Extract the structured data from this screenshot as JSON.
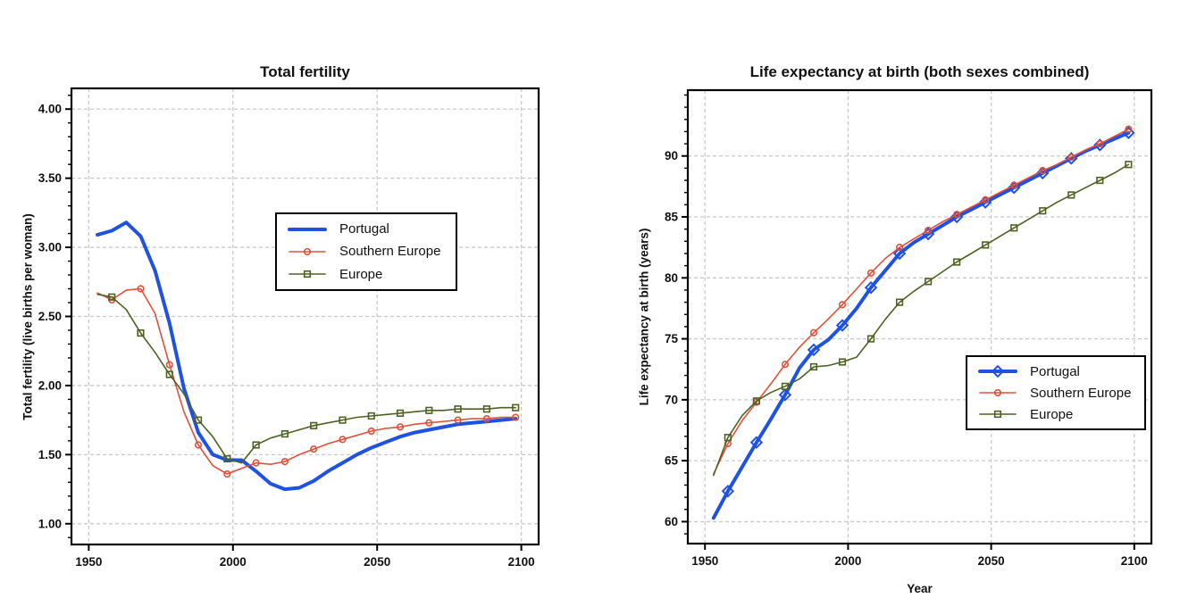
{
  "colors": {
    "portugal": "#1f51e3",
    "southern_europe": "#e0503a",
    "europe": "#4e6222",
    "grid": "#c9c9c9",
    "axis": "#000000",
    "text": "#111111",
    "background": "#ffffff"
  },
  "chart_data": [
    {
      "type": "line",
      "title": "Total fertility",
      "xlabel": "",
      "ylabel": "Total fertility (live births per woman)",
      "grid": true,
      "legend_position": "upper-middle",
      "xlim": [
        1944,
        2106
      ],
      "ylim": [
        0.85,
        4.15
      ],
      "xticks": [
        1950,
        2000,
        2050,
        2100
      ],
      "xtick_labels": [
        "1950",
        "2000",
        "2050",
        "2100"
      ],
      "yticks": [
        1.0,
        1.5,
        2.0,
        2.5,
        3.0,
        3.5,
        4.0
      ],
      "ytick_labels": [
        "1.00",
        "1.50",
        "2.00",
        "2.50",
        "3.00",
        "3.50",
        "4.00"
      ],
      "y_minor_step": 0.1,
      "x": [
        1953,
        1958,
        1963,
        1968,
        1973,
        1978,
        1983,
        1988,
        1993,
        1998,
        2003,
        2008,
        2013,
        2018,
        2023,
        2028,
        2033,
        2038,
        2043,
        2048,
        2053,
        2058,
        2063,
        2068,
        2073,
        2078,
        2083,
        2088,
        2093,
        2098
      ],
      "series": [
        {
          "name": "Portugal",
          "color": "#1f51e3",
          "line_width": 4,
          "marker": "none",
          "values": [
            3.09,
            3.12,
            3.18,
            3.08,
            2.83,
            2.45,
            1.98,
            1.66,
            1.5,
            1.46,
            1.46,
            1.38,
            1.29,
            1.25,
            1.26,
            1.31,
            1.38,
            1.44,
            1.5,
            1.55,
            1.59,
            1.63,
            1.66,
            1.68,
            1.7,
            1.72,
            1.73,
            1.74,
            1.75,
            1.76
          ]
        },
        {
          "name": "Southern Europe",
          "color": "#e0503a",
          "line_width": 1.6,
          "marker": "circle",
          "values": [
            2.67,
            2.62,
            2.69,
            2.7,
            2.52,
            2.15,
            1.81,
            1.57,
            1.42,
            1.36,
            1.4,
            1.44,
            1.43,
            1.45,
            1.5,
            1.54,
            1.58,
            1.61,
            1.64,
            1.67,
            1.69,
            1.7,
            1.72,
            1.73,
            1.74,
            1.75,
            1.76,
            1.76,
            1.77,
            1.77
          ]
        },
        {
          "name": "Europe",
          "color": "#4e6222",
          "line_width": 1.6,
          "marker": "square",
          "values": [
            2.66,
            2.64,
            2.55,
            2.38,
            2.24,
            2.08,
            1.94,
            1.75,
            1.63,
            1.47,
            1.44,
            1.57,
            1.62,
            1.65,
            1.68,
            1.71,
            1.73,
            1.75,
            1.77,
            1.78,
            1.79,
            1.8,
            1.81,
            1.82,
            1.82,
            1.83,
            1.83,
            1.83,
            1.84,
            1.84
          ]
        }
      ]
    },
    {
      "type": "line",
      "title": "Life expectancy at birth (both sexes combined)",
      "xlabel": "Year",
      "ylabel": "Life expectancy at birth (years)",
      "grid": true,
      "legend_position": "lower-right",
      "xlim": [
        1944,
        2106
      ],
      "ylim": [
        58.2,
        95.4
      ],
      "xticks": [
        1950,
        2000,
        2050,
        2100
      ],
      "xtick_labels": [
        "1950",
        "2000",
        "2050",
        "2100"
      ],
      "yticks": [
        60,
        65,
        70,
        75,
        80,
        85,
        90
      ],
      "ytick_labels": [
        "60",
        "65",
        "70",
        "75",
        "80",
        "85",
        "90"
      ],
      "y_minor_step": 1,
      "x": [
        1953,
        1958,
        1963,
        1968,
        1973,
        1978,
        1983,
        1988,
        1993,
        1998,
        2003,
        2008,
        2013,
        2018,
        2023,
        2028,
        2033,
        2038,
        2043,
        2048,
        2053,
        2058,
        2063,
        2068,
        2073,
        2078,
        2083,
        2088,
        2093,
        2098
      ],
      "series": [
        {
          "name": "Portugal",
          "color": "#1f51e3",
          "line_width": 4,
          "marker": "diamond",
          "values": [
            60.3,
            62.5,
            64.5,
            66.5,
            68.4,
            70.4,
            72.6,
            74.1,
            74.9,
            76.1,
            77.5,
            79.2,
            80.6,
            82.0,
            82.9,
            83.6,
            84.3,
            85.0,
            85.6,
            86.2,
            86.8,
            87.4,
            88.0,
            88.6,
            89.2,
            89.8,
            90.4,
            90.9,
            91.4,
            91.9
          ]
        },
        {
          "name": "Southern Europe",
          "color": "#e0503a",
          "line_width": 1.6,
          "marker": "circle",
          "values": [
            63.9,
            66.4,
            68.3,
            69.8,
            71.3,
            72.9,
            74.3,
            75.5,
            76.6,
            77.8,
            79.1,
            80.4,
            81.6,
            82.5,
            83.2,
            83.9,
            84.6,
            85.2,
            85.8,
            86.4,
            87.0,
            87.6,
            88.2,
            88.8,
            89.3,
            89.9,
            90.5,
            91.0,
            91.6,
            92.2
          ]
        },
        {
          "name": "Europe",
          "color": "#4e6222",
          "line_width": 1.6,
          "marker": "square",
          "values": [
            63.8,
            66.9,
            68.7,
            69.9,
            70.6,
            71.1,
            71.7,
            72.7,
            72.8,
            73.1,
            73.5,
            75.0,
            76.6,
            78.0,
            78.9,
            79.7,
            80.5,
            81.3,
            82.0,
            82.7,
            83.4,
            84.1,
            84.8,
            85.5,
            86.2,
            86.8,
            87.4,
            88.0,
            88.6,
            89.3
          ]
        }
      ]
    }
  ]
}
